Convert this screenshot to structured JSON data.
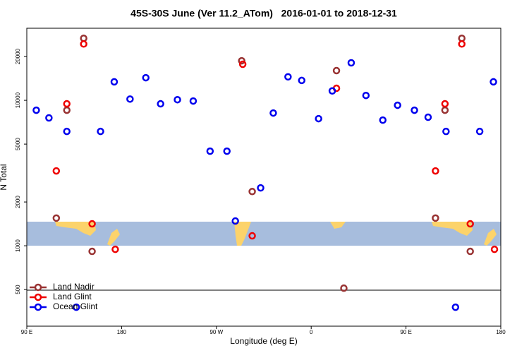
{
  "chart_data": {
    "type": "scatter",
    "title": "45S-30S June (Ver 11.2_ATom)   2016-01-01 to 2018-12-31",
    "x_label": "Longitude (deg E)",
    "y_label": "N Total",
    "xlim": [
      90,
      540
    ],
    "xticks": [
      {
        "value": 90,
        "label": "90 E"
      },
      {
        "value": 180,
        "label": "180"
      },
      {
        "value": 270,
        "label": "90 W"
      },
      {
        "value": 360,
        "label": "0"
      },
      {
        "value": 450,
        "label": "90 E"
      },
      {
        "value": 540,
        "label": "180"
      }
    ],
    "ylim": [
      280,
      31300
    ],
    "y_log": true,
    "yticks": [
      500,
      1000,
      2000,
      5000,
      10000,
      20000
    ],
    "legend": "bottom-left",
    "series": [
      {
        "name": "Land Nadir",
        "color": "#993333",
        "x": [
          144,
          128,
          118,
          152,
          294,
          304,
          384,
          391,
          503,
          487,
          478,
          511
        ],
        "values": [
          26700,
          8550,
          1550,
          915,
          18700,
          2360,
          16000,
          511,
          26700,
          8550,
          1550,
          915
        ]
      },
      {
        "name": "Land Glint",
        "color": "#ee0000",
        "x": [
          144,
          128,
          118,
          152,
          174,
          295,
          304,
          384,
          503,
          487,
          478,
          511,
          534
        ],
        "values": [
          24400,
          9460,
          3270,
          1415,
          945,
          17700,
          1170,
          12100,
          24400,
          9460,
          3270,
          1415,
          945
        ]
      },
      {
        "name": "Ocean Glint",
        "color": "#0000ee",
        "x": [
          99,
          111,
          128,
          137,
          160,
          173,
          188,
          203,
          217,
          233,
          248,
          264,
          280,
          288,
          312,
          324,
          338,
          351,
          367,
          380,
          398,
          412,
          428,
          442,
          458,
          471,
          488,
          497,
          520,
          533
        ],
        "values": [
          8550,
          7570,
          6110,
          378,
          6110,
          13400,
          10200,
          14300,
          9460,
          10100,
          9890,
          4470,
          4470,
          1480,
          2500,
          8180,
          14500,
          13700,
          7480,
          11600,
          18100,
          10800,
          7310,
          9250,
          8550,
          7650,
          6110,
          378,
          6110,
          13400
        ]
      }
    ]
  }
}
